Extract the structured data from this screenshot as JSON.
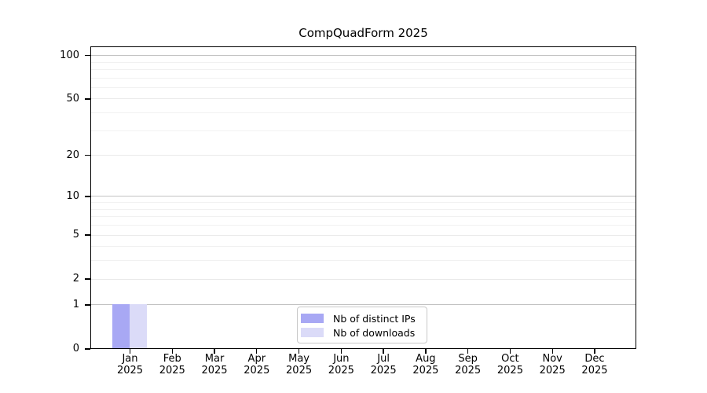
{
  "chart_data": {
    "type": "bar",
    "title": "CompQuadForm 2025",
    "x_categories": [
      "Jan",
      "Feb",
      "Mar",
      "Apr",
      "May",
      "Jun",
      "Jul",
      "Aug",
      "Sep",
      "Oct",
      "Nov",
      "Dec"
    ],
    "x_year_label": "2025",
    "series": [
      {
        "name": "Nb of distinct IPs",
        "color": "#a8a8f4",
        "values": [
          1,
          0,
          0,
          0,
          0,
          0,
          0,
          0,
          0,
          0,
          0,
          0
        ]
      },
      {
        "name": "Nb of downloads",
        "color": "#dbdbf8",
        "values": [
          1,
          0,
          0,
          0,
          0,
          0,
          0,
          0,
          0,
          0,
          0,
          0
        ]
      }
    ],
    "y_axis": {
      "scale": "log1p",
      "tick_values": [
        0,
        1,
        2,
        5,
        10,
        20,
        50,
        100
      ],
      "tick_labels": [
        "0",
        "1",
        "2",
        "5",
        "10",
        "20",
        "50",
        "100"
      ],
      "major_gridlines": [
        1,
        10,
        100
      ],
      "mid_gridlines": [
        2,
        5,
        20,
        50
      ],
      "minor_gridlines": [
        3,
        4,
        6,
        7,
        8,
        9,
        30,
        40,
        60,
        70,
        80,
        90
      ],
      "range_max": 115
    },
    "legend": {
      "position": "bottom-center"
    },
    "grid": true,
    "colors": {
      "axis": "#000000",
      "grid_major": "#c2c2c2",
      "grid_mid": "#eaeaea",
      "grid_minor": "#f1f1f1",
      "legend_border": "#c9c9c9",
      "background": "#ffffff"
    }
  }
}
